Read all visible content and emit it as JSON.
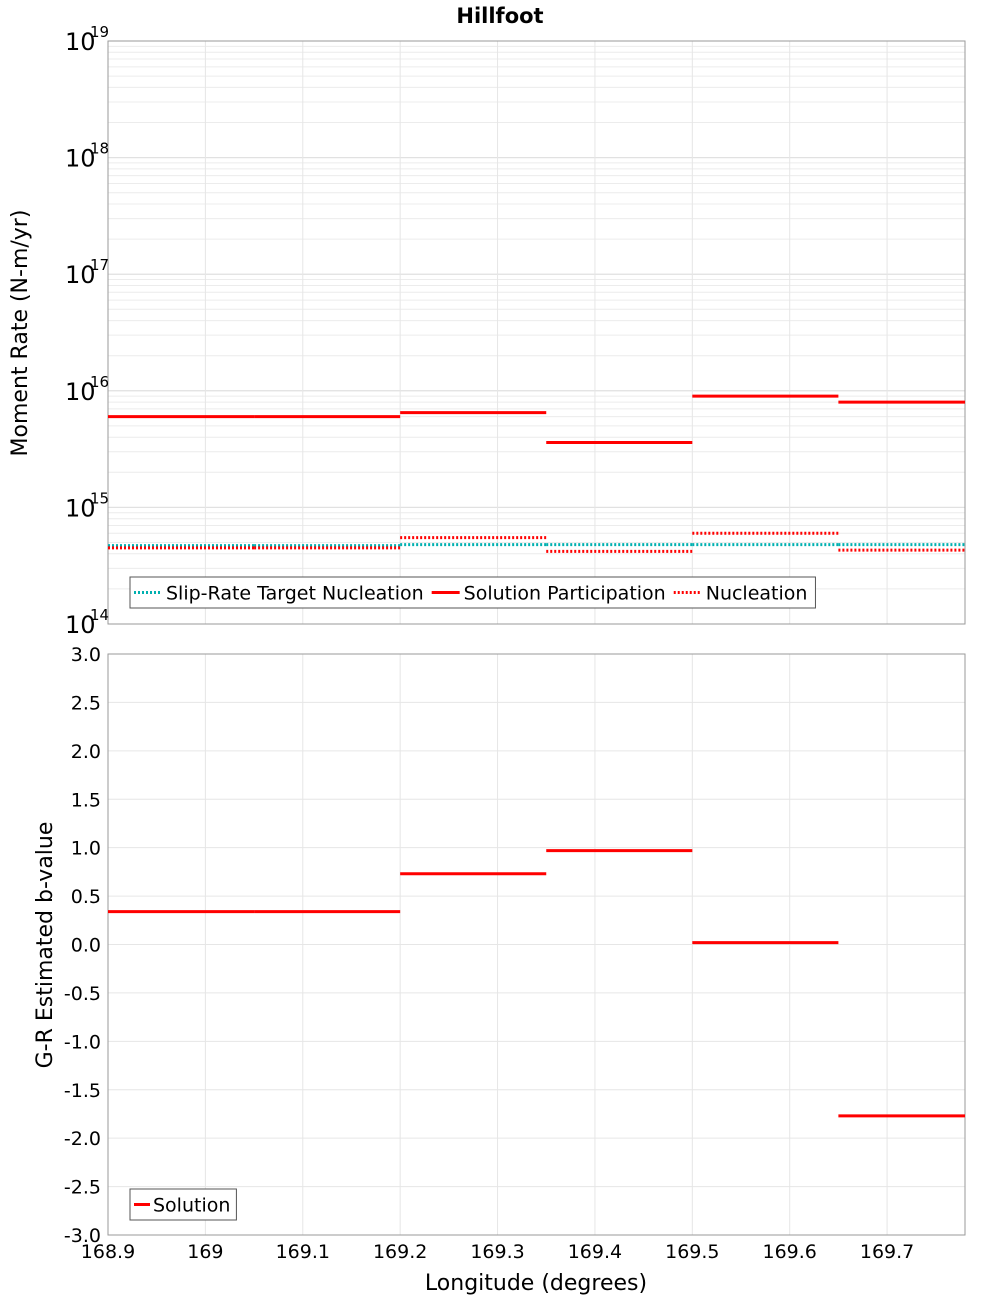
{
  "figure": {
    "title": "Hillfoot"
  },
  "chart_data": [
    {
      "type": "line",
      "ylabel": "Moment Rate (N-m/yr)",
      "yscale": "log",
      "ylim": [
        100000000000000.0,
        1e+19
      ],
      "xlim": [
        168.9,
        169.78
      ],
      "y_ticks": [
        {
          "base": "10",
          "exp": "14"
        },
        {
          "base": "10",
          "exp": "15"
        },
        {
          "base": "10",
          "exp": "16"
        },
        {
          "base": "10",
          "exp": "17"
        },
        {
          "base": "10",
          "exp": "18"
        },
        {
          "base": "10",
          "exp": "19"
        }
      ],
      "grid": true,
      "legend_position": "bottom-left",
      "series": [
        {
          "name": "Slip-Rate Target Nucleation",
          "style": "dotted",
          "color": "#00b0b0",
          "segments": [
            {
              "x": [
                168.9,
                169.05
              ],
              "y": 470000000000000.0
            },
            {
              "x": [
                169.05,
                169.2
              ],
              "y": 470000000000000.0
            },
            {
              "x": [
                169.2,
                169.35
              ],
              "y": 480000000000000.0
            },
            {
              "x": [
                169.35,
                169.5
              ],
              "y": 480000000000000.0
            },
            {
              "x": [
                169.5,
                169.65
              ],
              "y": 480000000000000.0
            },
            {
              "x": [
                169.65,
                169.78
              ],
              "y": 480000000000000.0
            }
          ]
        },
        {
          "name": "Solution Participation",
          "style": "solid",
          "color": "#ff0000",
          "segments": [
            {
              "x": [
                168.9,
                169.05
              ],
              "y": 6000000000000000.0
            },
            {
              "x": [
                169.05,
                169.2
              ],
              "y": 6000000000000000.0
            },
            {
              "x": [
                169.2,
                169.35
              ],
              "y": 6500000000000000.0
            },
            {
              "x": [
                169.35,
                169.5
              ],
              "y": 3600000000000000.0
            },
            {
              "x": [
                169.5,
                169.65
              ],
              "y": 9000000000000000.0
            },
            {
              "x": [
                169.65,
                169.78
              ],
              "y": 8000000000000000.0
            }
          ]
        },
        {
          "name": "Nucleation",
          "style": "dotted",
          "color": "#ff0000",
          "segments": [
            {
              "x": [
                168.9,
                169.05
              ],
              "y": 450000000000000.0
            },
            {
              "x": [
                169.05,
                169.2
              ],
              "y": 450000000000000.0
            },
            {
              "x": [
                169.2,
                169.35
              ],
              "y": 550000000000000.0
            },
            {
              "x": [
                169.35,
                169.5
              ],
              "y": 420000000000000.0
            },
            {
              "x": [
                169.5,
                169.65
              ],
              "y": 600000000000000.0
            },
            {
              "x": [
                169.65,
                169.78
              ],
              "y": 430000000000000.0
            }
          ]
        }
      ]
    },
    {
      "type": "line",
      "ylabel": "G-R Estimated b-value",
      "xlabel": "Longitude (degrees)",
      "ylim": [
        -3.0,
        3.0
      ],
      "xlim": [
        168.9,
        169.78
      ],
      "y_ticks": [
        "-3.0",
        "-2.5",
        "-2.0",
        "-1.5",
        "-1.0",
        "-0.5",
        "0.0",
        "0.5",
        "1.0",
        "1.5",
        "2.0",
        "2.5",
        "3.0"
      ],
      "x_ticks": [
        "168.9",
        "169",
        "169.1",
        "169.2",
        "169.3",
        "169.4",
        "169.5",
        "169.6",
        "169.7"
      ],
      "grid": true,
      "legend_position": "bottom-left",
      "series": [
        {
          "name": "Solution",
          "style": "solid",
          "color": "#ff0000",
          "segments": [
            {
              "x": [
                168.9,
                169.05
              ],
              "y": 0.34
            },
            {
              "x": [
                169.05,
                169.2
              ],
              "y": 0.34
            },
            {
              "x": [
                169.2,
                169.35
              ],
              "y": 0.73
            },
            {
              "x": [
                169.35,
                169.5
              ],
              "y": 0.97
            },
            {
              "x": [
                169.5,
                169.65
              ],
              "y": 0.02
            },
            {
              "x": [
                169.65,
                169.78
              ],
              "y": -1.77
            }
          ]
        }
      ]
    }
  ]
}
